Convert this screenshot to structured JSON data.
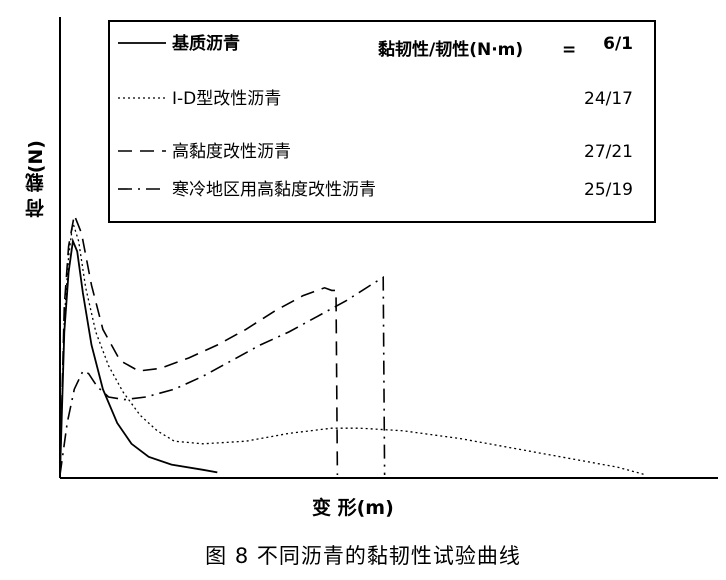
{
  "chart_data": {
    "type": "line",
    "title": "",
    "xlabel": "变  形(m)",
    "ylabel": "荷  载(N)",
    "legend_placement": "top-right",
    "legend_header": "黏韧性/韧性(N·m)",
    "grid": false,
    "series": [
      {
        "name": "基质沥青",
        "ratio": "6/1",
        "style": "solid",
        "points": [
          [
            0,
            0
          ],
          [
            0.03,
            0.55
          ],
          [
            0.06,
            0.78
          ],
          [
            0.09,
            0.9
          ],
          [
            0.12,
            0.86
          ],
          [
            0.16,
            0.7
          ],
          [
            0.22,
            0.5
          ],
          [
            0.3,
            0.33
          ],
          [
            0.4,
            0.2
          ],
          [
            0.5,
            0.12
          ],
          [
            0.62,
            0.07
          ],
          [
            0.78,
            0.04
          ],
          [
            1.0,
            0.02
          ],
          [
            1.1,
            0.01
          ]
        ]
      },
      {
        "name": "I-D型改性沥青",
        "ratio": "24/17",
        "style": "dotted",
        "points": [
          [
            0,
            0
          ],
          [
            0.03,
            0.6
          ],
          [
            0.06,
            0.84
          ],
          [
            0.09,
            0.97
          ],
          [
            0.13,
            0.9
          ],
          [
            0.18,
            0.72
          ],
          [
            0.25,
            0.55
          ],
          [
            0.34,
            0.42
          ],
          [
            0.44,
            0.32
          ],
          [
            0.56,
            0.23
          ],
          [
            0.68,
            0.17
          ],
          [
            0.8,
            0.13
          ],
          [
            1.0,
            0.12
          ],
          [
            1.3,
            0.13
          ],
          [
            1.6,
            0.16
          ],
          [
            1.9,
            0.18
          ],
          [
            2.1,
            0.18
          ],
          [
            2.4,
            0.17
          ],
          [
            2.8,
            0.14
          ],
          [
            3.2,
            0.1
          ],
          [
            3.6,
            0.06
          ],
          [
            3.9,
            0.03
          ],
          [
            4.1,
            0.0
          ]
        ]
      },
      {
        "name": "高黏度改性沥青",
        "ratio": "27/21",
        "style": "dashed",
        "points": [
          [
            0,
            0
          ],
          [
            0.03,
            0.65
          ],
          [
            0.06,
            0.88
          ],
          [
            0.1,
            1.0
          ],
          [
            0.15,
            0.93
          ],
          [
            0.22,
            0.73
          ],
          [
            0.3,
            0.56
          ],
          [
            0.42,
            0.44
          ],
          [
            0.55,
            0.4
          ],
          [
            0.7,
            0.41
          ],
          [
            0.9,
            0.45
          ],
          [
            1.1,
            0.5
          ],
          [
            1.3,
            0.56
          ],
          [
            1.5,
            0.63
          ],
          [
            1.7,
            0.69
          ],
          [
            1.85,
            0.72
          ],
          [
            1.9,
            0.71
          ],
          [
            1.93,
            0.71
          ],
          [
            1.94,
            0.0
          ]
        ]
      },
      {
        "name": "寒冷地区用高黏度改性沥青",
        "ratio": "25/19",
        "style": "dashdot",
        "points": [
          [
            0,
            0
          ],
          [
            0.05,
            0.2
          ],
          [
            0.1,
            0.33
          ],
          [
            0.16,
            0.4
          ],
          [
            0.2,
            0.39
          ],
          [
            0.26,
            0.34
          ],
          [
            0.34,
            0.3
          ],
          [
            0.45,
            0.29
          ],
          [
            0.6,
            0.3
          ],
          [
            0.8,
            0.33
          ],
          [
            1.0,
            0.38
          ],
          [
            1.2,
            0.44
          ],
          [
            1.4,
            0.5
          ],
          [
            1.6,
            0.55
          ],
          [
            1.8,
            0.61
          ],
          [
            2.0,
            0.67
          ],
          [
            2.2,
            0.74
          ],
          [
            2.26,
            0.76
          ],
          [
            2.27,
            0.0
          ]
        ]
      }
    ]
  },
  "figure_caption": "图 8  不同沥青的黏韧性试验曲线"
}
